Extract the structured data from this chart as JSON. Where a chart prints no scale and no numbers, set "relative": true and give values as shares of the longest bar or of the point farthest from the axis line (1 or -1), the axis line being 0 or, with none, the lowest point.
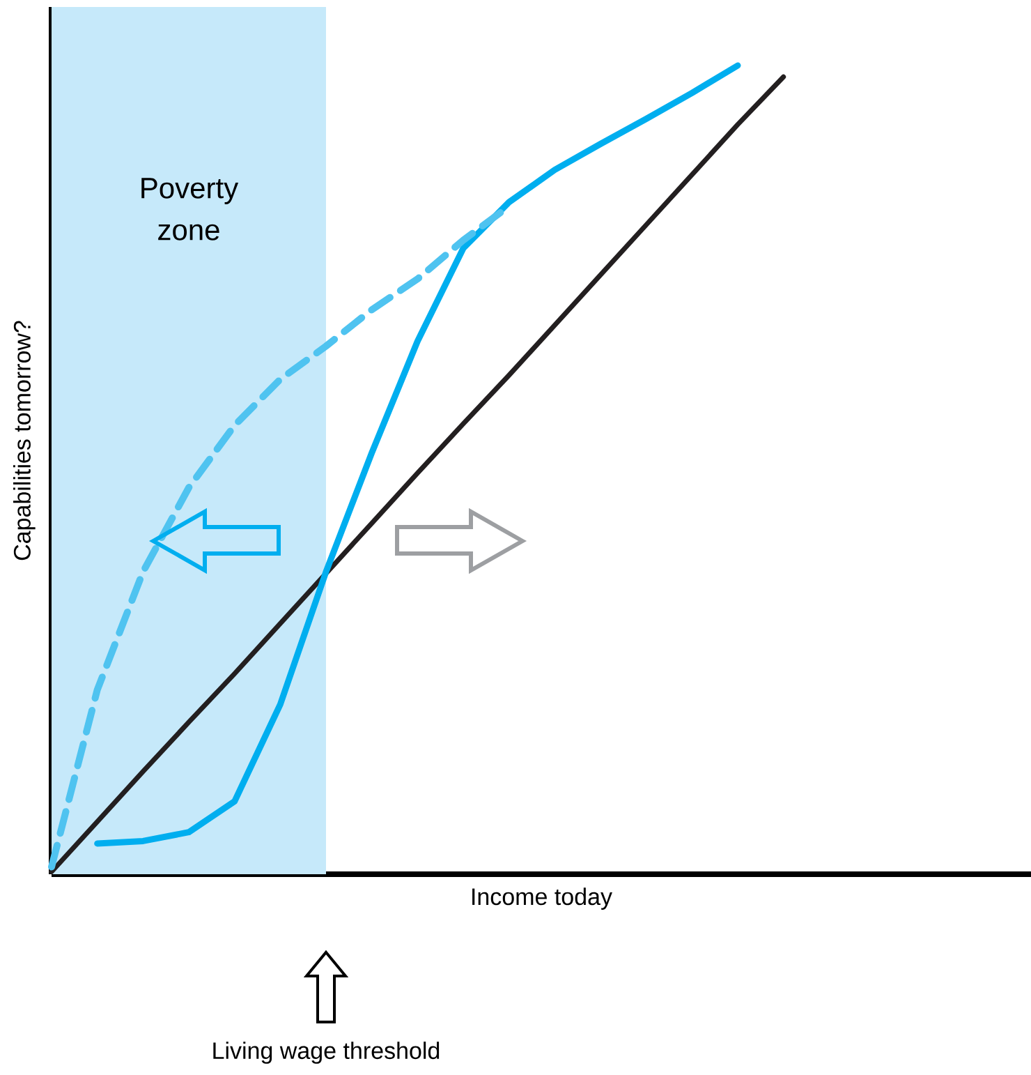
{
  "chart_data": {
    "type": "line",
    "relative": true,
    "xlabel": "Income today",
    "ylabel": "Capabilities tomorrow?",
    "categories": [
      null,
      null,
      null,
      null,
      null,
      null,
      null,
      null,
      null,
      null,
      null,
      null,
      null,
      null,
      null,
      null,
      null,
      null,
      null,
      null,
      null,
      null
    ],
    "annotations": [
      "Poverty zone",
      "Living wage threshold"
    ],
    "series": [
      {
        "color": "#231f20",
        "line_style": "solid",
        "values": [
          0.003,
          0.065,
          0.127,
          0.188,
          0.248,
          0.31,
          0.372,
          0.434,
          0.496,
          0.557,
          0.617,
          0.679,
          0.741,
          0.803,
          0.865,
          0.927,
          0.986,
          null,
          null,
          null,
          null,
          null
        ]
      },
      {
        "color": "#00aeef",
        "line_style": "solid",
        "values": [
          null,
          0.038,
          0.041,
          0.052,
          0.09,
          0.21,
          0.374,
          0.521,
          0.659,
          0.774,
          0.831,
          0.871,
          0.903,
          0.934,
          0.966,
          1.0,
          null,
          null,
          null,
          null,
          null,
          null
        ]
      },
      {
        "color": "#4fc3f0",
        "line_style": "dashed",
        "values": [
          0.009,
          0.228,
          0.374,
          0.478,
          0.555,
          0.612,
          0.653,
          0.698,
          0.736,
          0.784,
          0.826,
          null,
          null,
          null,
          null,
          null,
          null,
          null,
          null,
          null,
          null,
          null
        ]
      }
    ]
  }
}
